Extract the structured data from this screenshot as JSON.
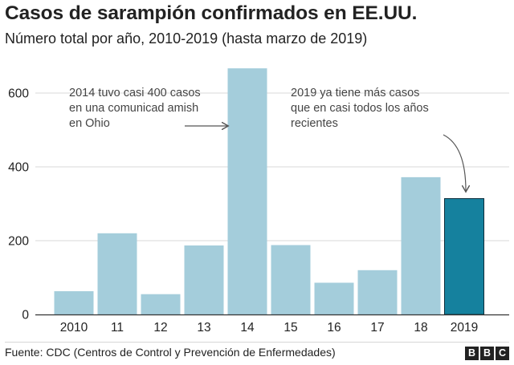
{
  "header": {
    "title": "Casos de sarampión confirmados en EE.UU.",
    "subtitle": "Número total por año, 2010-2019 (hasta marzo de 2019)"
  },
  "footer": {
    "source": "Fuente: CDC (Centros de Control y Prevención de Enfermedades)",
    "logo_letters": [
      "B",
      "B",
      "C"
    ]
  },
  "colors": {
    "bar": "#a4cddb",
    "highlight": "#15819e",
    "grid": "#d9d9d9",
    "axis": "#333333"
  },
  "chart_data": {
    "type": "bar",
    "categories": [
      "2010",
      "11",
      "12",
      "13",
      "14",
      "15",
      "16",
      "17",
      "18",
      "2019"
    ],
    "values": [
      63,
      220,
      55,
      187,
      667,
      188,
      86,
      120,
      372,
      314
    ],
    "highlight_index": 9,
    "title": "Casos de sarampión confirmados en EE.UU.",
    "subtitle": "Número total por año, 2010-2019 (hasta marzo de 2019)",
    "xlabel": "",
    "ylabel": "",
    "ylim": [
      0,
      700
    ],
    "yticks": [
      0,
      200,
      400,
      600
    ],
    "grid": true,
    "annotations": [
      {
        "lines": [
          "2014 tuvo casi 400 casos",
          "en una comunicad amish",
          "en Ohio"
        ],
        "target_index": 4
      },
      {
        "lines": [
          "2019 ya tiene más casos",
          "que en casi todos los años",
          "recientes"
        ],
        "target_index": 9
      }
    ]
  }
}
